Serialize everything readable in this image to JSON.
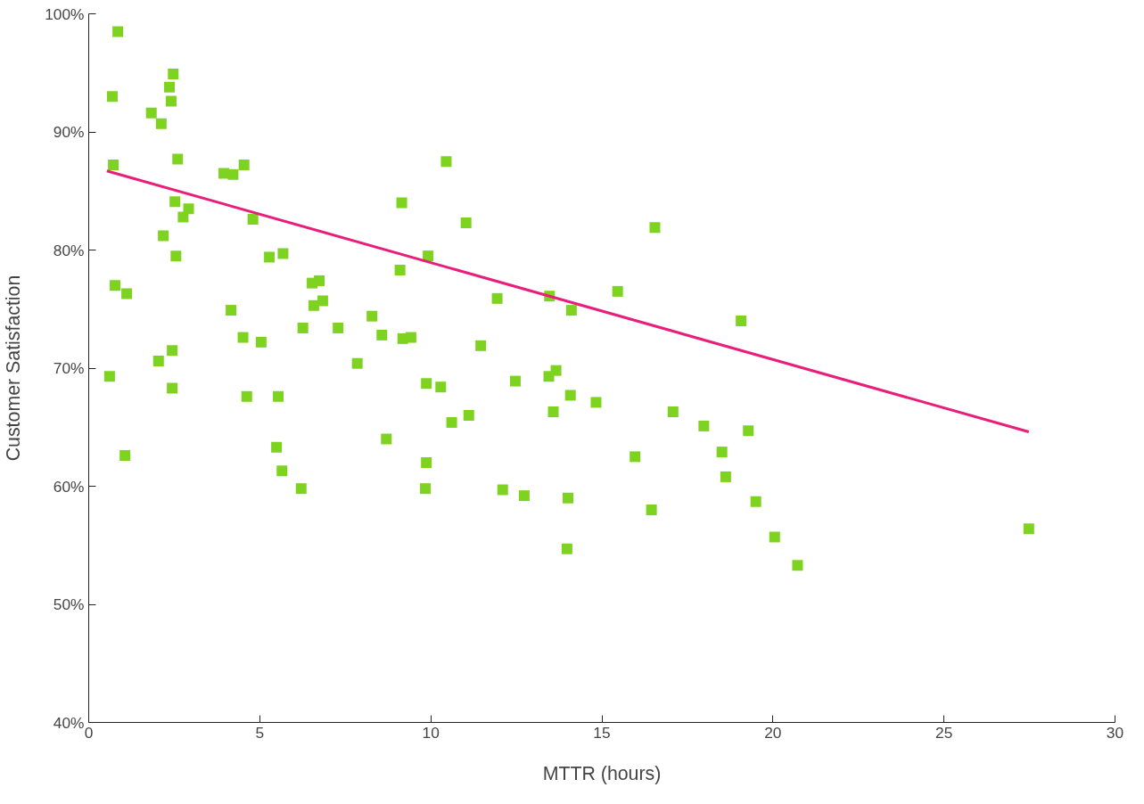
{
  "chart_data": {
    "type": "scatter",
    "xlabel": "MTTR (hours)",
    "ylabel": "Customer Satisfaction",
    "xlim": [
      0,
      30
    ],
    "xticks": [
      0,
      5,
      10,
      15,
      20,
      25,
      30
    ],
    "ylim": [
      40,
      100
    ],
    "yticks": [
      {
        "value": 40,
        "label": "40%"
      },
      {
        "value": 50,
        "label": "50%"
      },
      {
        "value": 60,
        "label": "60%"
      },
      {
        "value": 70,
        "label": "70%"
      },
      {
        "value": 80,
        "label": "80%"
      },
      {
        "value": 90,
        "label": "90%"
      },
      {
        "value": 100,
        "label": "100%"
      }
    ],
    "grid": false,
    "marker": "square",
    "series": [
      {
        "color": "#7ed321",
        "x": [
          0.69,
          0.85,
          0.72,
          0.77,
          1.11,
          0.61,
          1.06,
          1.83,
          2.12,
          2.36,
          2.47,
          2.41,
          2.6,
          2.52,
          2.18,
          2.55,
          2.76,
          2.92,
          2.04,
          2.44,
          2.44,
          3.95,
          4.22,
          4.54,
          4.8,
          4.16,
          4.51,
          4.62,
          5.04,
          5.28,
          5.68,
          5.54,
          5.49,
          5.65,
          6.21,
          6.26,
          6.53,
          6.74,
          6.58,
          6.84,
          7.29,
          7.85,
          8.28,
          8.57,
          8.7,
          9.1,
          9.15,
          9.18,
          9.42,
          9.92,
          9.87,
          9.87,
          9.84,
          10.45,
          10.29,
          10.61,
          11.03,
          11.11,
          11.46,
          11.94,
          12.1,
          12.47,
          12.73,
          13.47,
          13.45,
          13.66,
          13.58,
          14.11,
          14.08,
          14.01,
          13.98,
          14.83,
          15.46,
          15.97,
          16.45,
          16.55,
          17.08,
          17.98,
          18.51,
          18.62,
          19.07,
          19.28,
          19.5,
          20.05,
          20.72,
          27.48
        ],
        "values": [
          93.0,
          98.5,
          87.2,
          77.0,
          76.3,
          69.3,
          62.6,
          91.6,
          90.7,
          93.8,
          94.9,
          92.6,
          87.7,
          84.1,
          81.2,
          79.5,
          82.8,
          83.5,
          70.6,
          71.5,
          68.3,
          86.5,
          86.4,
          87.2,
          82.6,
          74.9,
          72.6,
          67.6,
          72.2,
          79.4,
          79.7,
          67.6,
          63.3,
          61.3,
          59.8,
          73.4,
          77.2,
          77.4,
          75.3,
          75.7,
          73.4,
          70.4,
          74.4,
          72.8,
          64.0,
          78.3,
          84.0,
          72.5,
          72.6,
          79.5,
          68.7,
          62.0,
          59.8,
          87.5,
          68.4,
          65.4,
          82.3,
          66.0,
          71.9,
          75.9,
          59.7,
          68.9,
          59.2,
          76.1,
          69.3,
          69.8,
          66.3,
          74.9,
          67.7,
          59.0,
          54.7,
          67.1,
          76.5,
          62.5,
          58.0,
          81.9,
          66.3,
          65.1,
          62.9,
          60.8,
          74.0,
          64.7,
          58.7,
          55.7,
          53.3,
          56.4
        ]
      },
      {
        "type": "line",
        "color": "#e91e7a",
        "marker": "none",
        "line_style": "solid",
        "x": [
          0.53,
          27.48
        ],
        "values": [
          86.7,
          64.6
        ]
      }
    ]
  }
}
